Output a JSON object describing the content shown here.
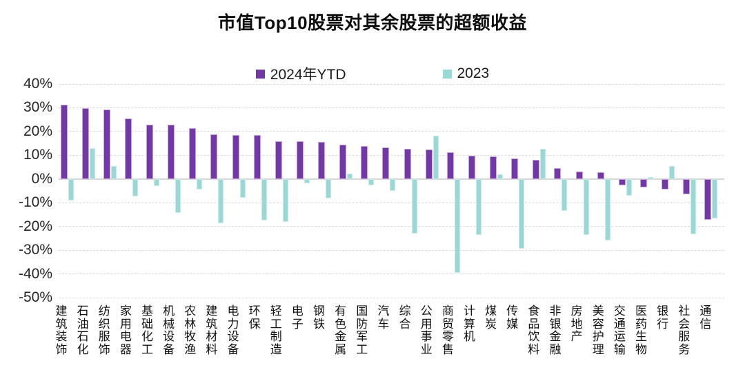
{
  "chart": {
    "title": "市值Top10股票对其余股票的超额收益"
  },
  "chart_data": {
    "type": "bar",
    "title": "市值Top10股票对其余股票的超额收益",
    "xlabel": "",
    "ylabel": "",
    "ylim": [
      -50,
      40
    ],
    "ytick_values": [
      40,
      30,
      20,
      10,
      0,
      -10,
      -20,
      -30,
      -40,
      -50
    ],
    "yticks": [
      "40%",
      "30%",
      "20%",
      "10%",
      "0%",
      "-10%",
      "-20%",
      "-30%",
      "-40%",
      "-50%"
    ],
    "grid": "horizontal-dashed",
    "legend_position": "top-center",
    "categories": [
      "建筑装饰",
      "石油石化",
      "纺织服饰",
      "家用电器",
      "基础化工",
      "机械设备",
      "农林牧渔",
      "建筑材料",
      "电力设备",
      "环保",
      "轻工制造",
      "电子",
      "钢铁",
      "有色金属",
      "国防军工",
      "汽车",
      "综合",
      "公用事业",
      "商贸零售",
      "计算机",
      "煤炭",
      "传媒",
      "食品饮料",
      "非银金融",
      "房地产",
      "美容护理",
      "交通运输",
      "医药生物",
      "银行",
      "社会服务",
      "通信"
    ],
    "series": [
      {
        "name": "2024年YTD",
        "color": "#7338A6",
        "border_color": "#c3a6de",
        "values": [
          31.2,
          29.8,
          29.2,
          25.6,
          22.9,
          22.9,
          21.4,
          18.9,
          18.6,
          18.6,
          15.9,
          15.8,
          15.6,
          14.5,
          13.8,
          13.4,
          12.6,
          12.3,
          11.4,
          9.9,
          9.5,
          8.7,
          8.1,
          4.6,
          3.1,
          2.9,
          -2.6,
          -3.6,
          -4.4,
          -6.6,
          -17.2
        ]
      },
      {
        "name": "2023",
        "color": "#99D8D4",
        "border_color": "#c8ece9",
        "values": [
          -9.1,
          12.9,
          5.4,
          -7.2,
          -3.1,
          -14.4,
          -4.4,
          -18.6,
          -7.9,
          -17.5,
          -18.2,
          -1.9,
          -8.1,
          2.3,
          -2.8,
          -5.1,
          -22.9,
          18.1,
          -39.5,
          -23.6,
          1.9,
          -29.4,
          12.8,
          -13.5,
          -23.6,
          -26.0,
          -6.9,
          0.8,
          5.4,
          -23.4,
          -16.6
        ]
      }
    ]
  }
}
